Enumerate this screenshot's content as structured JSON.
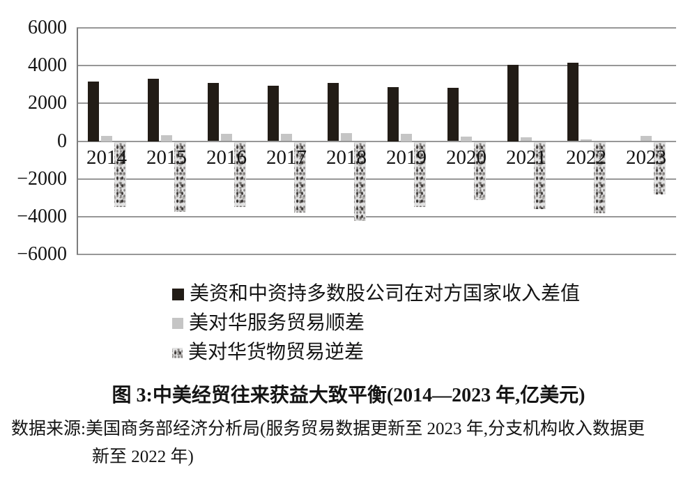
{
  "figure": {
    "title": "图 3:中美经贸往来获益大致平衡(2014—2023 年,亿美元)",
    "source_line1": "数据来源:美国商务部经济分析局(服务贸易数据更新至 2023 年,分支机构收入数据更",
    "source_line2": "新至 2022 年)"
  },
  "chart_data": {
    "type": "bar",
    "title": "图 3:中美经贸往来获益大致平衡(2014—2023 年,亿美元)",
    "unit": "亿美元",
    "categories": [
      "2014",
      "2015",
      "2016",
      "2017",
      "2018",
      "2019",
      "2020",
      "2021",
      "2022",
      "2023"
    ],
    "series": [
      {
        "name": "美资和中资持多数股公司在对方国家收入差值",
        "style": "solid-black",
        "color": "#221c16",
        "values": [
          3150,
          3300,
          3080,
          2950,
          3100,
          2850,
          2830,
          4050,
          4150,
          null
        ]
      },
      {
        "name": "美对华服务贸易顺差",
        "style": "solid-gray",
        "color": "#c5c5c5",
        "values": [
          270,
          300,
          370,
          400,
          410,
          390,
          240,
          190,
          110,
          260
        ]
      },
      {
        "name": "美对华货物贸易逆差",
        "style": "speckled-gray",
        "color": "#e2e2e2",
        "values": [
          -3450,
          -3700,
          -3450,
          -3750,
          -4200,
          -3450,
          -3100,
          -3550,
          -3800,
          -2800
        ]
      }
    ],
    "ylim": [
      -6000,
      6000
    ],
    "yticks": [
      6000,
      4000,
      2000,
      0,
      -2000,
      -4000,
      -6000
    ],
    "ytick_labels": [
      "6000",
      "4000",
      "2000",
      "0",
      "−2000",
      "−4000",
      "−6000"
    ],
    "grid": true,
    "legend_position": "below-left"
  }
}
